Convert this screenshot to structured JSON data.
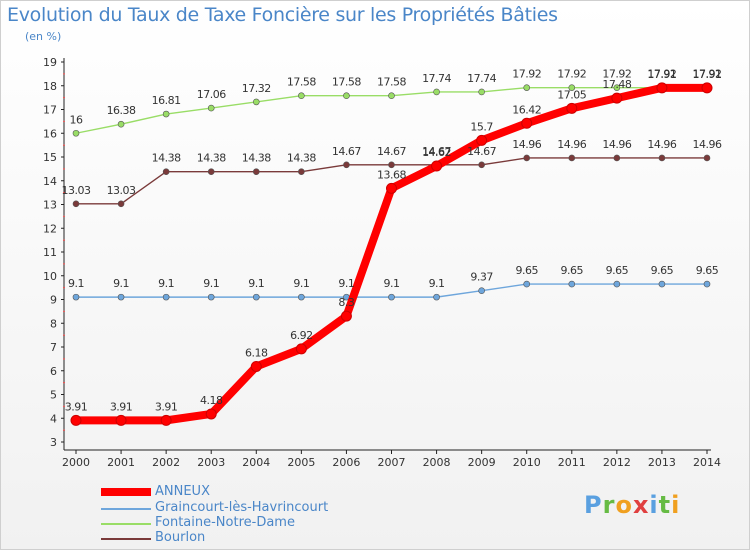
{
  "chart_data": {
    "type": "line",
    "title": "Evolution du Taux de Taxe Foncière sur les Propriétés Bâties",
    "unit_label": "(en %)",
    "xlabel": "",
    "ylabel": "",
    "x": [
      "2000",
      "2001",
      "2002",
      "2003",
      "2004",
      "2005",
      "2006",
      "2007",
      "2008",
      "2009",
      "2010",
      "2011",
      "2012",
      "2013",
      "2014"
    ],
    "ylim": [
      3,
      19
    ],
    "yticks": [
      "3",
      "4",
      "5",
      "6",
      "7",
      "8",
      "9",
      "10",
      "11",
      "12",
      "13",
      "14",
      "15",
      "16",
      "17",
      "18",
      "19"
    ],
    "grid": false,
    "legend_position": "bottom-left",
    "series": [
      {
        "name": "ANNEUX",
        "color": "#ff0000",
        "values": [
          3.91,
          3.91,
          3.91,
          4.18,
          6.18,
          6.92,
          8.3,
          13.68,
          14.62,
          15.7,
          16.42,
          17.05,
          17.48,
          17.91,
          17.91
        ],
        "labels": [
          "3.91",
          "3.91",
          "3.91",
          "4.18",
          "6.18",
          "6.92",
          "8.3",
          "13.68",
          "14.62",
          "15.7",
          "16.42",
          "17.05",
          "17.48",
          "17.91",
          "17.91"
        ]
      },
      {
        "name": "Graincourt-lès-Havrincourt",
        "color": "#6ea6dc",
        "values": [
          9.1,
          9.1,
          9.1,
          9.1,
          9.1,
          9.1,
          9.1,
          9.1,
          9.1,
          9.37,
          9.65,
          9.65,
          9.65,
          9.65,
          9.65
        ],
        "labels": [
          "9.1",
          "9.1",
          "9.1",
          "9.1",
          "9.1",
          "9.1",
          "9.1",
          "9.1",
          "9.1",
          "9.37",
          "9.65",
          "9.65",
          "9.65",
          "9.65",
          "9.65"
        ]
      },
      {
        "name": "Fontaine-Notre-Dame",
        "color": "#99dd66",
        "values": [
          16,
          16.38,
          16.81,
          17.06,
          17.32,
          17.58,
          17.58,
          17.58,
          17.74,
          17.74,
          17.92,
          17.92,
          17.92,
          17.92,
          17.92
        ],
        "labels": [
          "16",
          "16.38",
          "16.81",
          "17.06",
          "17.32",
          "17.58",
          "17.58",
          "17.58",
          "17.74",
          "17.74",
          "17.92",
          "17.92",
          "17.92",
          "17.92",
          "17.92"
        ]
      },
      {
        "name": "Bourlon",
        "color": "#7a3a3a",
        "values": [
          13.03,
          13.03,
          14.38,
          14.38,
          14.38,
          14.38,
          14.67,
          14.67,
          14.67,
          14.67,
          14.96,
          14.96,
          14.96,
          14.96,
          14.96
        ],
        "labels": [
          "13.03",
          "13.03",
          "14.38",
          "14.38",
          "14.38",
          "14.38",
          "14.67",
          "14.67",
          "14.67",
          "14.67",
          "14.96",
          "14.96",
          "14.96",
          "14.96",
          "14.96"
        ]
      }
    ]
  },
  "logo": {
    "letters": [
      "P",
      "r",
      "o",
      "x",
      "i",
      "t",
      "i"
    ],
    "colors": [
      "#5aa0e0",
      "#66bb44",
      "#f0a020",
      "#e04040",
      "#5aa0e0",
      "#66bb44",
      "#f0a020"
    ]
  }
}
